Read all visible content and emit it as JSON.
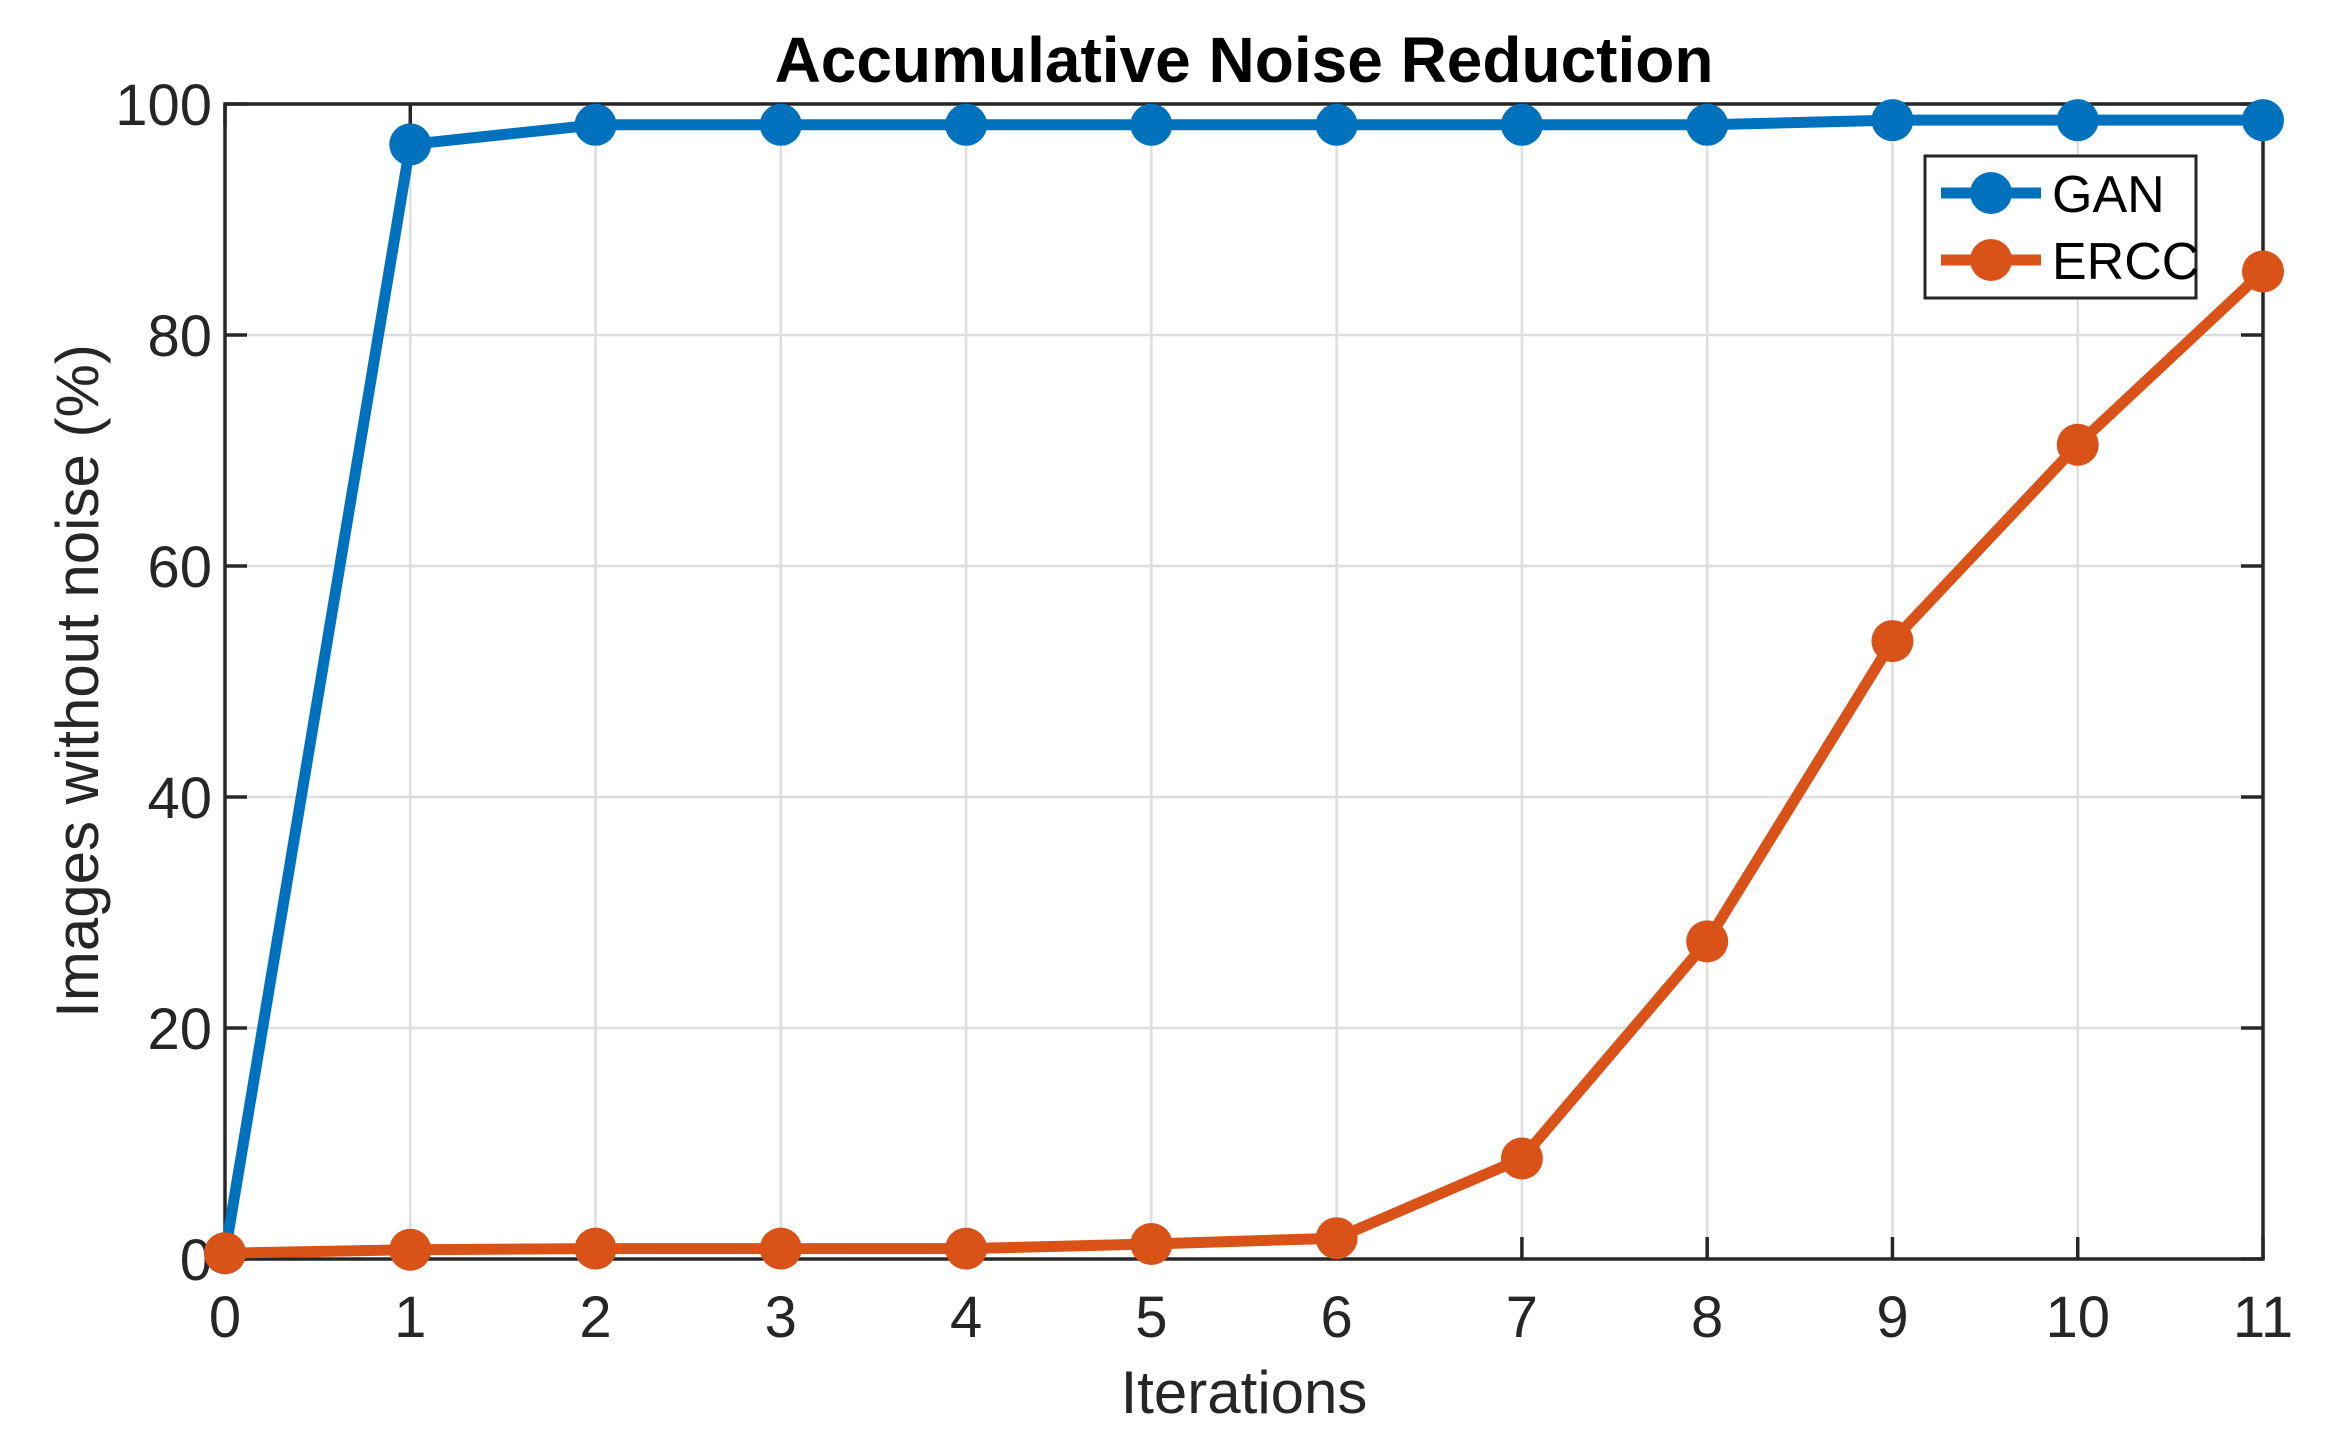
{
  "figure": {
    "title": "Accumulative Noise Reduction",
    "xlabel": "Iterations",
    "ylabel": "Images without noise (%)"
  },
  "chart_data": {
    "type": "line",
    "title": "Accumulative Noise Reduction",
    "xlabel": "Iterations",
    "ylabel": "Images without noise (%)",
    "x": [
      0,
      1,
      2,
      3,
      4,
      5,
      6,
      7,
      8,
      9,
      10,
      11
    ],
    "series": [
      {
        "name": "GAN",
        "color": "#0072BD",
        "values": [
          0.5,
          96.5,
          98.2,
          98.2,
          98.2,
          98.2,
          98.2,
          98.2,
          98.2,
          98.6,
          98.6,
          98.6
        ]
      },
      {
        "name": "ERCC",
        "color": "#D95319",
        "values": [
          0.5,
          0.8,
          0.9,
          0.9,
          0.9,
          1.3,
          1.8,
          8.7,
          27.5,
          53.5,
          70.5,
          85.5
        ]
      }
    ],
    "xlim": [
      0,
      11
    ],
    "ylim": [
      0,
      100
    ],
    "x_ticks": [
      0,
      1,
      2,
      3,
      4,
      5,
      6,
      7,
      8,
      9,
      10,
      11
    ],
    "y_ticks": [
      0,
      20,
      40,
      60,
      80,
      100
    ],
    "grid": true,
    "legend_position": "top-right",
    "marker": "filled-circle"
  },
  "style": {
    "background": "#FFFFFF",
    "axis_color": "#262626",
    "grid_color": "#DEDEDE",
    "title_color": "#000000",
    "gan_color": "#0072BD",
    "ercc_color": "#D95319"
  }
}
